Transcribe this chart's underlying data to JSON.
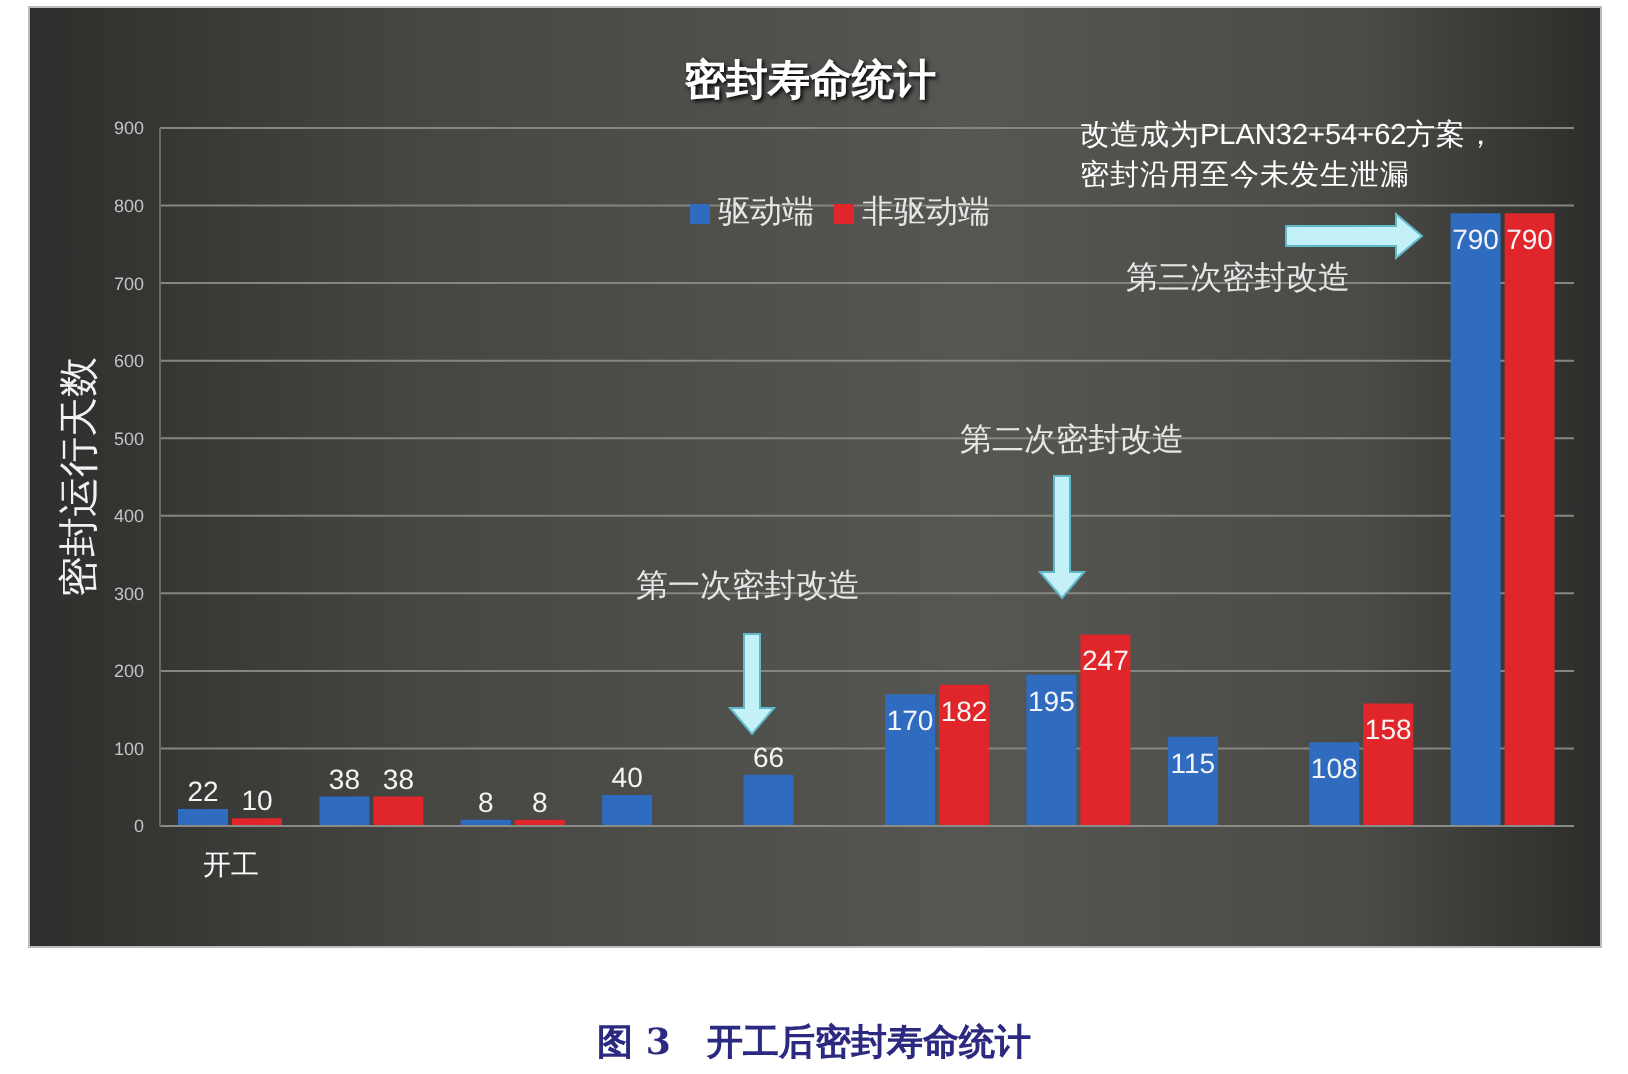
{
  "chart_data": {
    "type": "bar",
    "title": "密封寿命统计",
    "ylabel": "密封运行天数",
    "categories": [
      "开工",
      null,
      null,
      null,
      null,
      null,
      null,
      null,
      null,
      null
    ],
    "series": [
      {
        "name": "驱动端",
        "color": "#2f6cc0",
        "values": [
          22,
          38,
          8,
          40,
          66,
          170,
          195,
          115,
          108,
          790
        ]
      },
      {
        "name": "非驱动端",
        "color": "#e0262a",
        "values": [
          10,
          38,
          8,
          null,
          null,
          182,
          247,
          null,
          158,
          790
        ]
      }
    ],
    "ylim": [
      0,
      900
    ],
    "yticks": [
      0,
      100,
      200,
      300,
      400,
      500,
      600,
      700,
      800,
      900
    ],
    "grid": "y",
    "legend": "top",
    "data_labels": true,
    "annotations": [
      "第一次密封改造",
      "第二次密封改造",
      "第三次密封改造",
      "改造成为PLAN32+54+62方案，",
      "密封沿用至今未发生泄漏",
      "图 3　开工后密封寿命统计"
    ]
  }
}
